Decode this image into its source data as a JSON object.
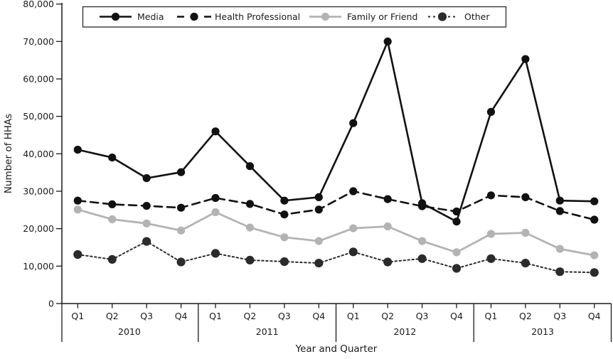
{
  "chart_data": {
    "type": "line",
    "title": "",
    "xlabel": "Year and Quarter",
    "ylabel": "Number of HHAs",
    "ylim": [
      0,
      80000
    ],
    "grid": false,
    "legend_position": "top",
    "y_tick_labels": [
      "0",
      "10,000",
      "20,000",
      "30,000",
      "40,000",
      "50,000",
      "60,000",
      "70,000",
      "80,000"
    ],
    "y_tick_values": [
      0,
      10000,
      20000,
      30000,
      40000,
      50000,
      60000,
      70000,
      80000
    ],
    "quarters": [
      "Q1",
      "Q2",
      "Q3",
      "Q4",
      "Q1",
      "Q2",
      "Q3",
      "Q4",
      "Q1",
      "Q2",
      "Q3",
      "Q4",
      "Q1",
      "Q2",
      "Q3",
      "Q4"
    ],
    "years": [
      "2010",
      "2011",
      "2012",
      "2013"
    ],
    "series": [
      {
        "name": "Media",
        "color": "#111111",
        "line_style": "solid",
        "line_width": 2.6,
        "marker": "circle",
        "marker_size": 5.6,
        "values": [
          41100,
          39000,
          33500,
          35100,
          46000,
          36700,
          27500,
          28400,
          48200,
          70000,
          26800,
          21900,
          51200,
          65300,
          27500,
          27300
        ]
      },
      {
        "name": "Health Professional",
        "color": "#111111",
        "line_style": "dashed",
        "line_width": 2.6,
        "marker": "circle",
        "marker_size": 5.6,
        "values": [
          27500,
          26500,
          26100,
          25600,
          28200,
          26600,
          23800,
          25100,
          30000,
          27900,
          26000,
          24600,
          28900,
          28400,
          24700,
          22400
        ]
      },
      {
        "name": "Family or Friend",
        "color": "#b3b3b3",
        "line_style": "solid",
        "line_width": 2.8,
        "marker": "circle",
        "marker_size": 5.6,
        "values": [
          25100,
          22500,
          21400,
          19500,
          24400,
          20300,
          17700,
          16700,
          20100,
          20600,
          16700,
          13700,
          18600,
          18900,
          14600,
          12900
        ]
      },
      {
        "name": "Other",
        "color": "#2b2b2b",
        "line_style": "dotted",
        "line_width": 2.0,
        "marker": "circle",
        "marker_size": 6.1,
        "values": [
          13100,
          11800,
          16600,
          11100,
          13400,
          11600,
          11200,
          10800,
          13800,
          11100,
          12000,
          9400,
          12000,
          10800,
          8500,
          8300
        ]
      }
    ]
  }
}
